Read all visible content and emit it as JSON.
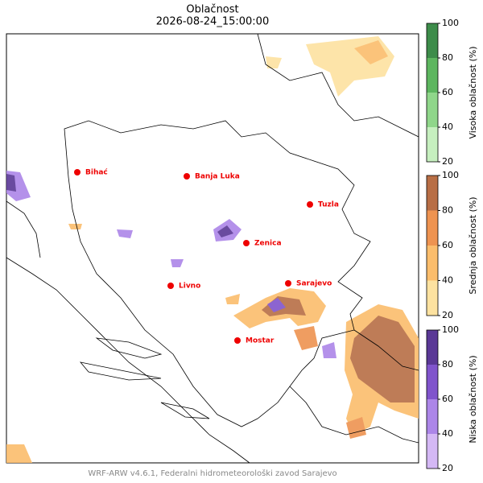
{
  "title": "Oblačnost",
  "subtitle": "2026-08-24_15:00:00",
  "cities": [
    {
      "name": "Bihać"
    },
    {
      "name": "Banja Luka"
    },
    {
      "name": "Tuzla"
    },
    {
      "name": "Zenica"
    },
    {
      "name": "Sarajevo"
    },
    {
      "name": "Livno"
    },
    {
      "name": "Mostar"
    }
  ],
  "colorbars": [
    {
      "label": "Visoka oblačnost (%)",
      "lim": [
        20,
        100
      ],
      "ticks": [
        20,
        40,
        60,
        80,
        100
      ],
      "colors": [
        "#c6efbf",
        "#8fd68a",
        "#5db65f",
        "#3d8c4a"
      ]
    },
    {
      "label": "Srednja oblačnost (%)",
      "lim": [
        20,
        100
      ],
      "ticks": [
        20,
        40,
        60,
        80,
        100
      ],
      "colors": [
        "#fde2a0",
        "#fbbd6c",
        "#ee9350",
        "#b86e45"
      ]
    },
    {
      "label": "Niska oblačnost (%)",
      "lim": [
        20,
        100
      ],
      "ticks": [
        20,
        40,
        60,
        80,
        100
      ],
      "colors": [
        "#d4b8f5",
        "#ac86e8",
        "#8054cc",
        "#5a3896"
      ]
    }
  ],
  "footer": "WRF-ARW v4.6.1, Federalni hidrometeorološki zavod Sarajevo"
}
